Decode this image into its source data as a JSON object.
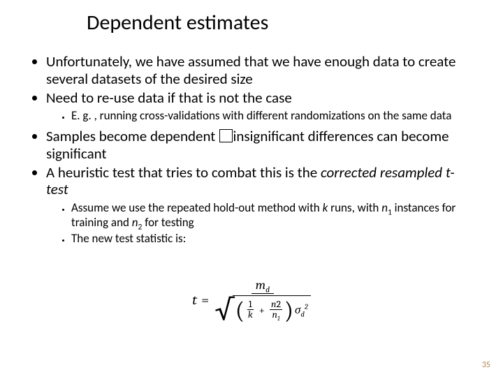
{
  "title": "Dependent estimates",
  "bullets": {
    "b1": "Unfortunately, we have assumed that we have enough data to create several datasets of the desired size",
    "b2": "Need to re-use data if that is not the case",
    "b2_s1": "E. g. , running cross-validations with different randomizations on the same data",
    "b3_pre": "Samples become dependent ",
    "b3_post": "insignificant differences can become significant",
    "b4_pre": "A heuristic test that tries to combat this is the ",
    "b4_italic": "corrected resampled t-test",
    "b5_s1_pre": "Assume we use the repeated hold-out method with ",
    "b5_s1_k": "k",
    "b5_s1_mid1": " runs, with ",
    "b5_s1_n1": "n",
    "b5_s1_n1sub": "1",
    "b5_s1_mid2": " instances for training and ",
    "b5_s1_n2": "n",
    "b5_s1_n2sub": "2",
    "b5_s1_end": " for testing",
    "b5_s2": "The new test statistic is:"
  },
  "formula": {
    "t": "t",
    "eq": "=",
    "num_m": "m",
    "num_sub": "d",
    "radical": "√",
    "lparen": "(",
    "rparen": ")",
    "one": "1",
    "k": "k",
    "plus": "+",
    "n2": "n",
    "n2sub": "2",
    "n1": "n",
    "n1sub": "1",
    "sigma": "σ",
    "sigma_sub": "d",
    "sigma_sup": "2"
  },
  "page_number": "35",
  "colors": {
    "background": "#ffffff",
    "text": "#000000",
    "page_num": "#b08b57"
  }
}
